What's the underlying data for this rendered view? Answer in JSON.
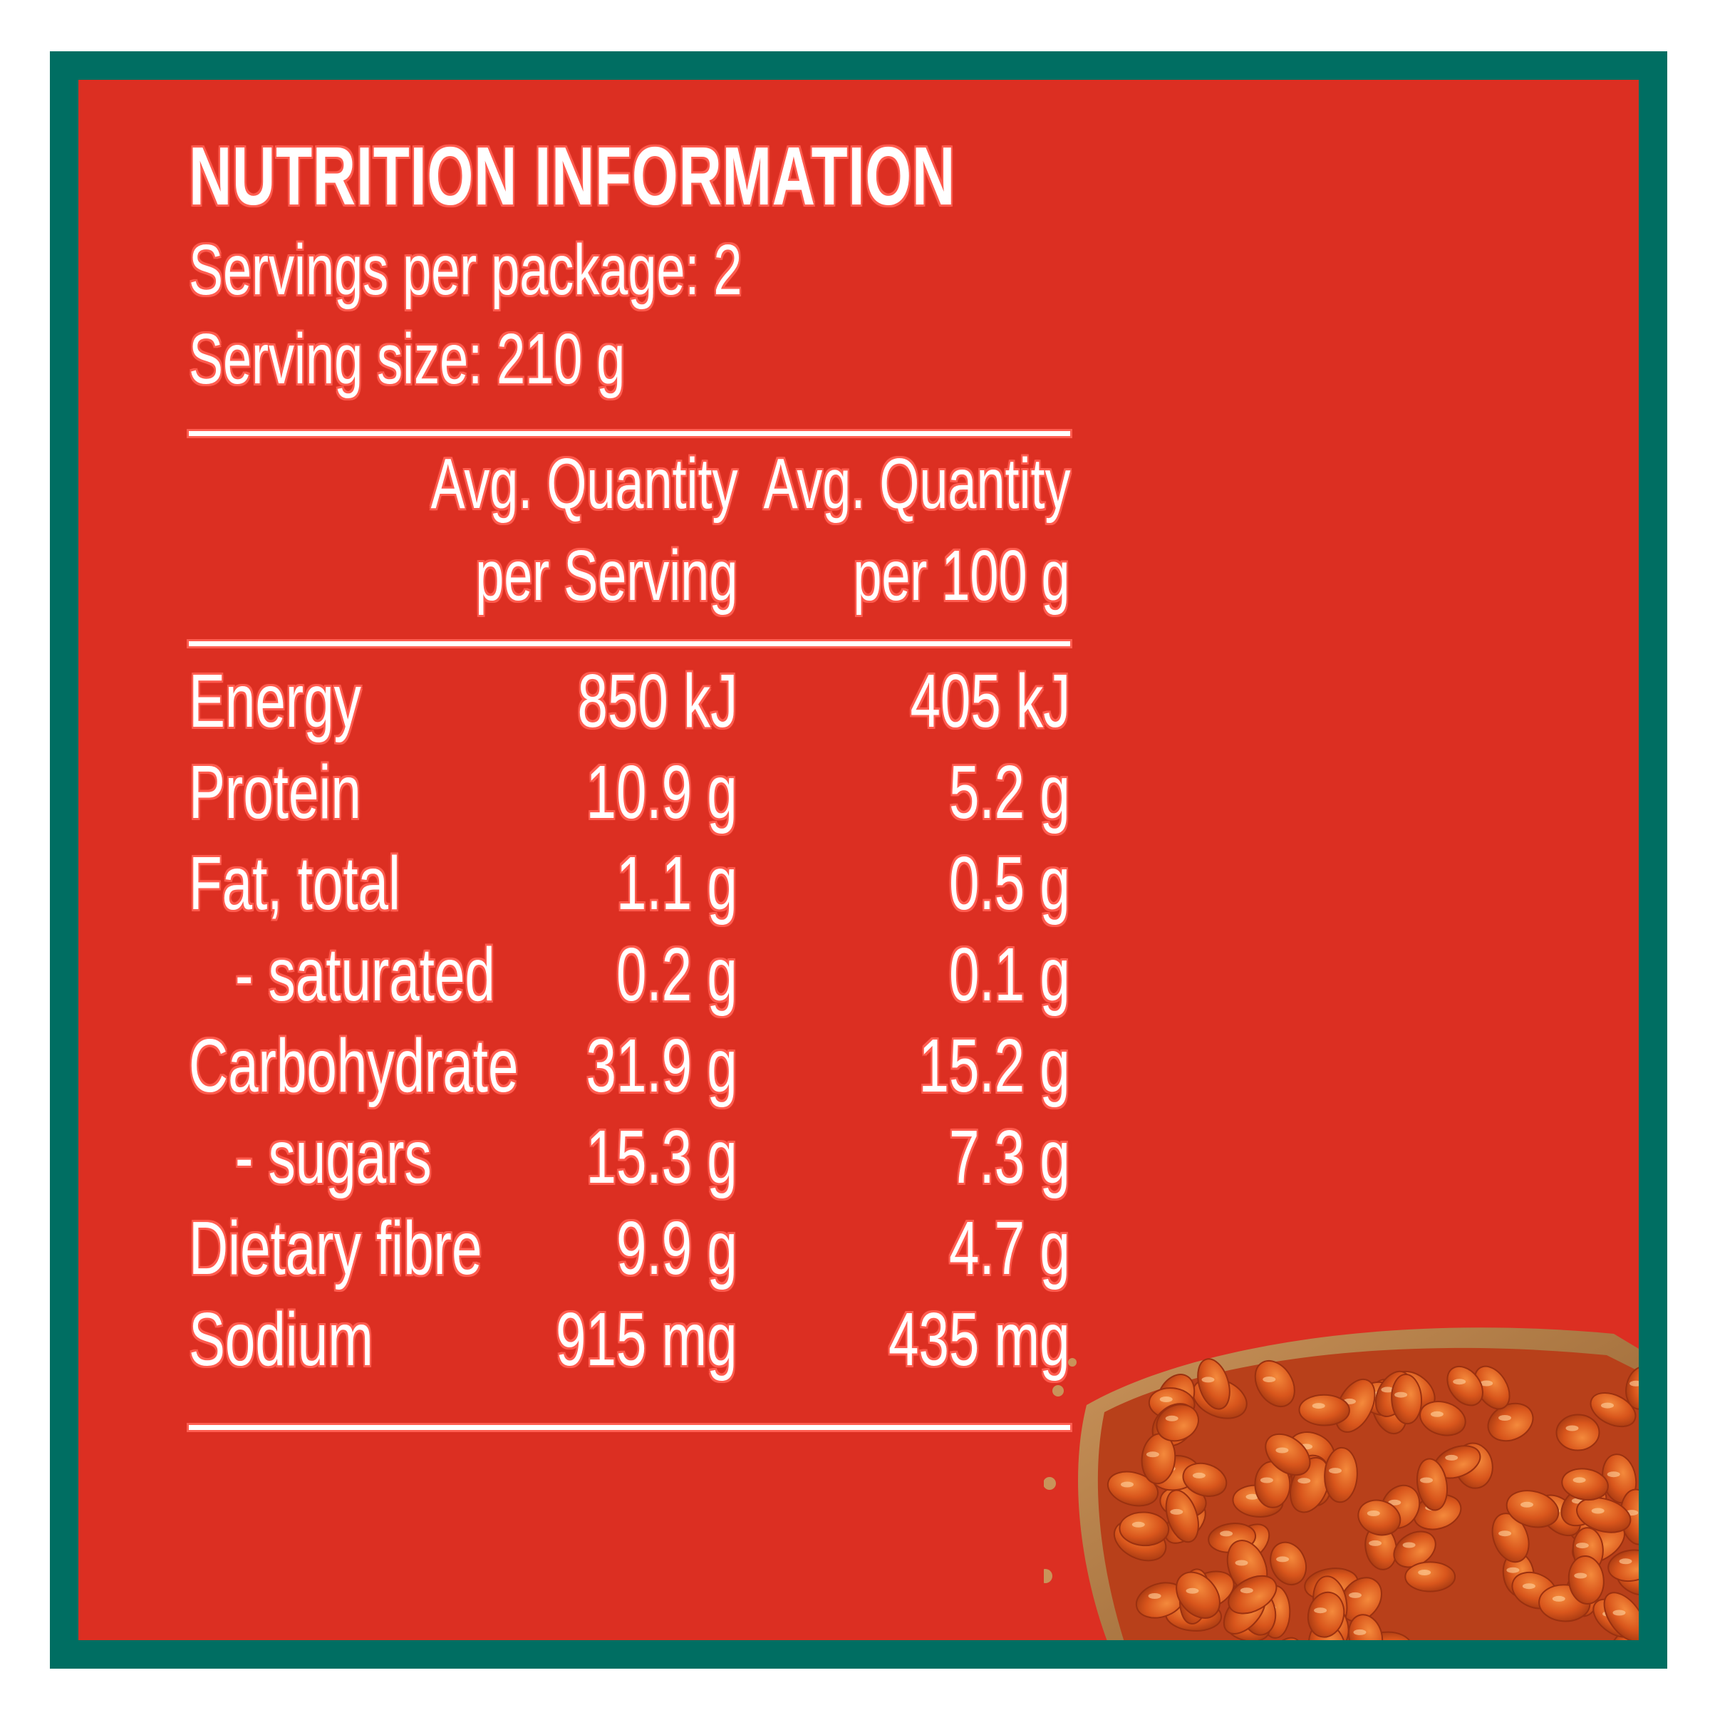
{
  "header": {
    "title": "NUTRITION INFORMATION",
    "servings_per_package": "Servings per package: 2",
    "serving_size": "Serving size: 210 g"
  },
  "columns": {
    "per_serving_line1": "Avg. Quantity",
    "per_serving_line2": "per Serving",
    "per_100g_line1": "Avg. Quantity",
    "per_100g_line2": "per 100 g"
  },
  "rows": [
    {
      "label": "Energy",
      "per_serving": "850 kJ",
      "per_100g": "405 kJ"
    },
    {
      "label": "Protein",
      "per_serving": "10.9 g",
      "per_100g": "5.2 g"
    },
    {
      "label": "Fat, total",
      "per_serving": "1.1 g",
      "per_100g": "0.5 g"
    },
    {
      "label": "- saturated",
      "per_serving": "0.2 g",
      "per_100g": "0.1 g"
    },
    {
      "label": "Carbohydrate",
      "per_serving": "31.9 g",
      "per_100g": "15.2 g"
    },
    {
      "label": "- sugars",
      "per_serving": "15.3 g",
      "per_100g": "7.3 g"
    },
    {
      "label": "Dietary fibre",
      "per_serving": "9.9 g",
      "per_100g": "4.7 g"
    },
    {
      "label": "Sodium",
      "per_serving": "915 mg",
      "per_100g": "435 mg"
    }
  ],
  "colors": {
    "frame": "#006e62",
    "panel": "#dc2f22",
    "text": "#ffffff",
    "bean": "#d9561c",
    "toast": "#b07a3a"
  },
  "illustration": "beans-on-toast-image"
}
